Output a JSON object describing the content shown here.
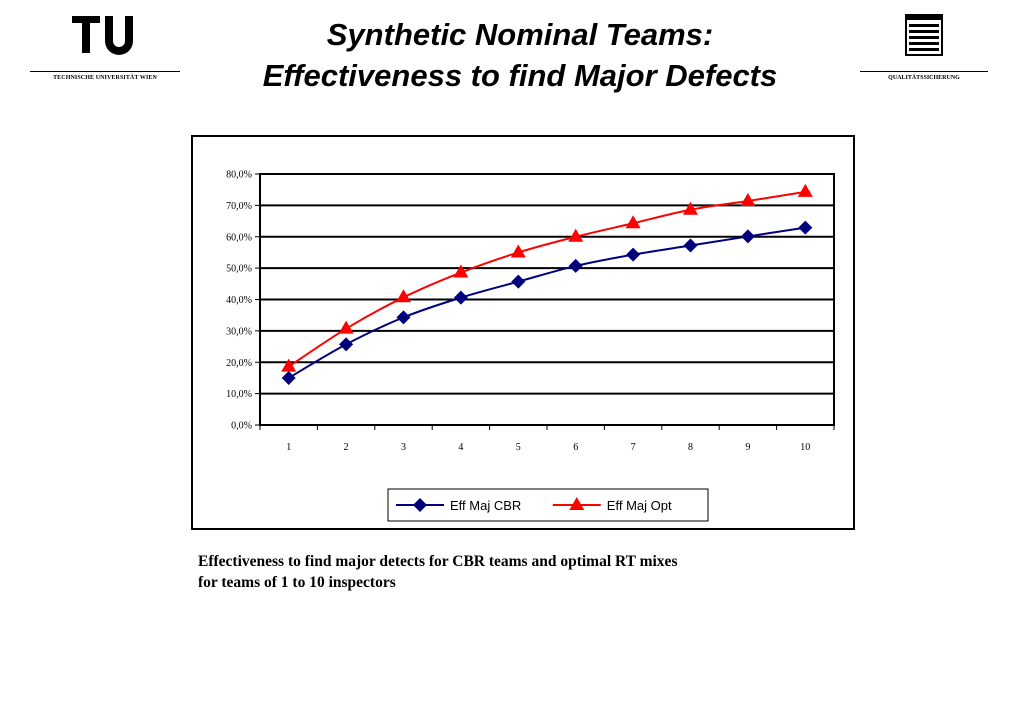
{
  "header": {
    "title_line1": "Synthetic Nominal Teams:",
    "title_line2": "Effectiveness to find Major Defects",
    "left_logo_text": "TECHNISCHE UNIVERSITÄT WIEN",
    "right_logo_text": "QUALITÄTSSICHERUNG"
  },
  "caption": {
    "line1": "Effectiveness to find major detects for CBR teams and optimal RT mixes",
    "line2": "for teams of 1 to 10 inspectors"
  },
  "chart_data": {
    "type": "line",
    "title": "",
    "xlabel": "",
    "ylabel": "",
    "categories": [
      "1",
      "2",
      "3",
      "4",
      "5",
      "6",
      "7",
      "8",
      "9",
      "10"
    ],
    "ylim": [
      0,
      80
    ],
    "yticks": [
      "0,0%",
      "10,0%",
      "20,0%",
      "30,0%",
      "40,0%",
      "50,0%",
      "60,0%",
      "70,0%",
      "80,0%"
    ],
    "grid": true,
    "legend_position": "bottom",
    "series": [
      {
        "name": "Eff Maj CBR",
        "color": "#00007f",
        "marker": "diamond",
        "values": [
          15.0,
          25.7,
          34.3,
          40.6,
          45.7,
          50.7,
          54.3,
          57.2,
          60.1,
          62.9
        ]
      },
      {
        "name": "Eff Maj Opt",
        "color": "#ff0000",
        "marker": "triangle",
        "values": [
          18.6,
          30.7,
          40.7,
          48.6,
          55.0,
          60.0,
          64.3,
          68.6,
          71.4,
          74.3
        ]
      }
    ]
  }
}
